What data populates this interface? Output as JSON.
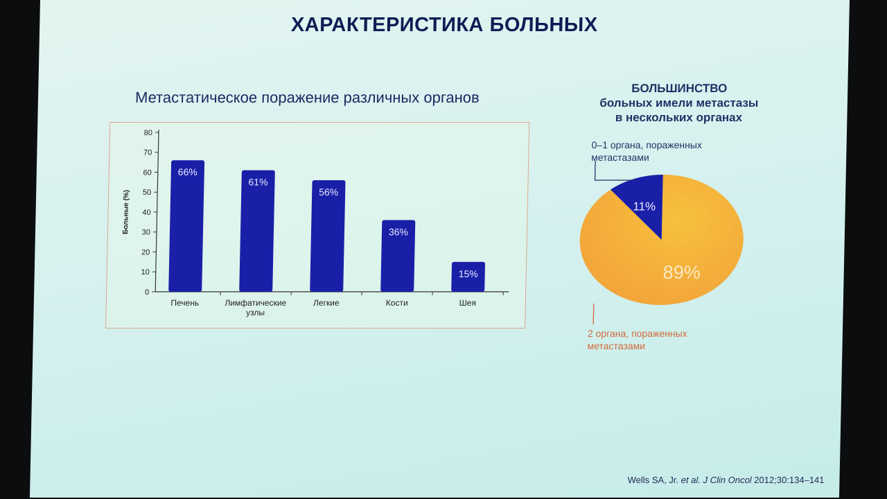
{
  "slide": {
    "title": "ХАРАКТЕРИСТИКА БОЛЬНЫХ",
    "citation": {
      "author": "Wells SA, Jr.",
      "etal": "et al.",
      "journal": "J Clin Oncol",
      "ref": "2012;30:134–141"
    }
  },
  "bar_heading": "Метастатическое поражение различных органов",
  "pie_heading": {
    "line1": "БОЛЬШИНСТВО",
    "line2": "больных имели метастазы",
    "line3": "в нескольких органах"
  },
  "pie_labels": {
    "top_line1": "0–1 органа, пораженных",
    "top_line2": "метастазами",
    "bottom_line1": "2 органа, пораженных",
    "bottom_line2": "метастазами"
  },
  "colors": {
    "bar": "#1a1fa8",
    "pie_small": "#1a1fa8",
    "pie_large_outer": "#f2a23a",
    "pie_large_inner": "#f7c13c",
    "frame": "#d9a98f"
  },
  "chart_data": [
    {
      "type": "bar",
      "ylabel": "Больные (%)",
      "xlabel": "",
      "ylim": [
        0,
        80
      ],
      "yticks": [
        0,
        10,
        20,
        30,
        40,
        50,
        60,
        70,
        80
      ],
      "categories": [
        [
          "Печень"
        ],
        [
          "Лимфатические",
          "узлы"
        ],
        [
          "Легкие"
        ],
        [
          "Кости"
        ],
        [
          "Шея"
        ]
      ],
      "values": [
        66,
        61,
        56,
        36,
        15
      ],
      "data_labels": [
        "66%",
        "61%",
        "56%",
        "36%",
        "15%"
      ],
      "grid": false,
      "legend": "none"
    },
    {
      "type": "pie",
      "slices": [
        {
          "label": "0–1 органа, пораженных метастазами",
          "value": 11,
          "data_label": "11%"
        },
        {
          "label": "2 органа, пораженных метастазами",
          "value": 89,
          "data_label": "89%"
        }
      ]
    }
  ]
}
